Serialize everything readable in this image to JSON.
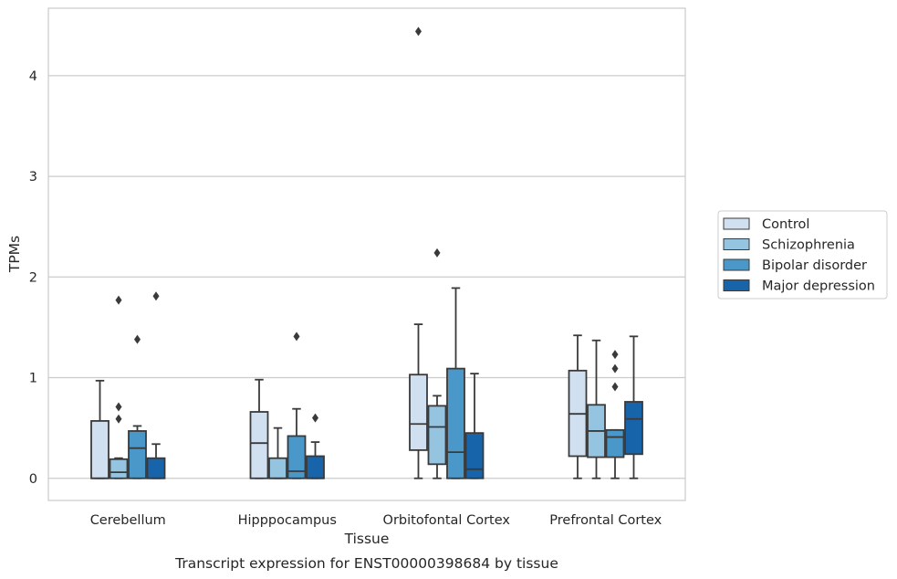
{
  "chart_data": {
    "type": "box",
    "xlabel": "Tissue",
    "ylabel": "TPMs",
    "caption": "Transcript expression for ENST00000398684 by tissue",
    "ylim": [
      -0.22,
      4.67
    ],
    "yticks": [
      0,
      1,
      2,
      3,
      4
    ],
    "grid": "horizontal",
    "legend_position": "right",
    "categories": [
      "Cerebellum",
      "Hipppocampus",
      "Orbitofontal Cortex",
      "Prefrontal Cortex"
    ],
    "series": [
      {
        "name": "Control",
        "color": "#d0e0f1",
        "boxes": [
          {
            "min": 0,
            "q1": 0,
            "median": 0,
            "q3": 0.57,
            "max": 0.97,
            "outliers": []
          },
          {
            "min": 0,
            "q1": 0,
            "median": 0.35,
            "q3": 0.66,
            "max": 0.98,
            "outliers": []
          },
          {
            "min": 0,
            "q1": 0.28,
            "median": 0.54,
            "q3": 1.03,
            "max": 1.53,
            "outliers": [
              4.44
            ]
          },
          {
            "min": 0,
            "q1": 0.22,
            "median": 0.64,
            "q3": 1.07,
            "max": 1.42,
            "outliers": []
          }
        ]
      },
      {
        "name": "Schizophrenia",
        "color": "#94c4df",
        "boxes": [
          {
            "min": 0,
            "q1": 0,
            "median": 0.06,
            "q3": 0.19,
            "max": 0.2,
            "outliers": [
              0.59,
              0.71,
              1.77
            ]
          },
          {
            "min": 0,
            "q1": 0,
            "median": 0,
            "q3": 0.2,
            "max": 0.5,
            "outliers": []
          },
          {
            "min": 0,
            "q1": 0.14,
            "median": 0.51,
            "q3": 0.72,
            "max": 0.82,
            "outliers": [
              2.24
            ]
          },
          {
            "min": 0,
            "q1": 0.21,
            "median": 0.47,
            "q3": 0.73,
            "max": 1.37,
            "outliers": []
          }
        ]
      },
      {
        "name": "Bipolar disorder",
        "color": "#4a98c9",
        "boxes": [
          {
            "min": 0,
            "q1": 0,
            "median": 0.3,
            "q3": 0.47,
            "max": 0.52,
            "outliers": [
              1.38
            ]
          },
          {
            "min": 0,
            "q1": 0,
            "median": 0.07,
            "q3": 0.42,
            "max": 0.69,
            "outliers": [
              1.41
            ]
          },
          {
            "min": 0,
            "q1": 0,
            "median": 0.26,
            "q3": 1.09,
            "max": 1.89,
            "outliers": []
          },
          {
            "min": 0,
            "q1": 0.21,
            "median": 0.41,
            "q3": 0.48,
            "max": 0.48,
            "outliers": [
              0.91,
              1.09,
              1.23
            ]
          }
        ]
      },
      {
        "name": "Major depression",
        "color": "#1864aa",
        "boxes": [
          {
            "min": 0,
            "q1": 0,
            "median": 0,
            "q3": 0.2,
            "max": 0.34,
            "outliers": [
              1.81
            ]
          },
          {
            "min": 0,
            "q1": 0,
            "median": 0,
            "q3": 0.22,
            "max": 0.36,
            "outliers": [
              0.6
            ]
          },
          {
            "min": 0,
            "q1": 0,
            "median": 0.09,
            "q3": 0.45,
            "max": 1.04,
            "outliers": []
          },
          {
            "min": 0,
            "q1": 0.24,
            "median": 0.59,
            "q3": 0.76,
            "max": 1.41,
            "outliers": []
          }
        ]
      }
    ]
  }
}
